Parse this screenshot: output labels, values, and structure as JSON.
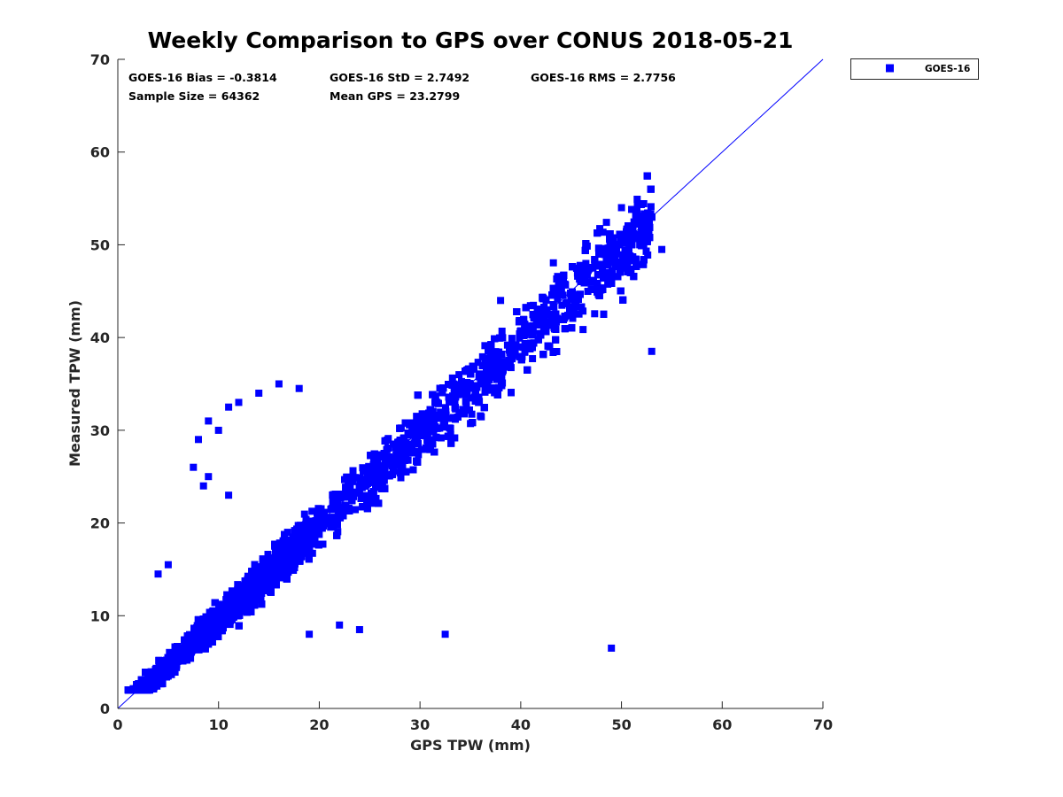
{
  "chart_data": {
    "type": "scatter",
    "title": "Weekly Comparison to GPS over CONUS 2018-05-21",
    "xlabel": "GPS TPW (mm)",
    "ylabel": "Measured TPW (mm)",
    "xlim": [
      0,
      70
    ],
    "ylim": [
      0,
      70
    ],
    "xticks": [
      "0",
      "10",
      "20",
      "30",
      "40",
      "50",
      "60",
      "70"
    ],
    "yticks": [
      "0",
      "10",
      "20",
      "30",
      "40",
      "50",
      "60",
      "70"
    ],
    "grid": false,
    "legend_position": "outside-top-right",
    "series": [
      {
        "name": "GOES-16",
        "color": "#0000ff",
        "marker": "square",
        "sample_size": 64362,
        "bias": -0.3814,
        "std": 2.7492,
        "rms": 2.7756,
        "mean_gps": 23.2799,
        "x_range": [
          0.8,
          55
        ],
        "outlier_points": [
          [
            7.5,
            26
          ],
          [
            8,
            29
          ],
          [
            9,
            31
          ],
          [
            10,
            30
          ],
          [
            11,
            32.5
          ],
          [
            12,
            33
          ],
          [
            14,
            34
          ],
          [
            16,
            35
          ],
          [
            18,
            34.5
          ],
          [
            9,
            25
          ],
          [
            8.5,
            24
          ],
          [
            49,
            6.5
          ],
          [
            32.5,
            8
          ],
          [
            24,
            8.5
          ],
          [
            22,
            9
          ],
          [
            19,
            8
          ],
          [
            11,
            23
          ],
          [
            5,
            15.5
          ],
          [
            4,
            14.5
          ],
          [
            48,
            49
          ],
          [
            50,
            54
          ],
          [
            52,
            50
          ],
          [
            54,
            49.5
          ],
          [
            53,
            38.5
          ],
          [
            38,
            44
          ]
        ]
      }
    ],
    "reference_line": {
      "type": "one-to-one",
      "from": [
        0,
        0
      ],
      "to": [
        70,
        70
      ],
      "color": "#0000ff"
    }
  },
  "stats": {
    "bias": "GOES-16 Bias = -0.3814",
    "std": "GOES-16 StD = 2.7492",
    "rms": "GOES-16 RMS = 2.7756",
    "sample_size": "Sample Size = 64362",
    "mean_gps": "Mean GPS = 23.2799"
  },
  "legend": {
    "label": "GOES-16"
  }
}
